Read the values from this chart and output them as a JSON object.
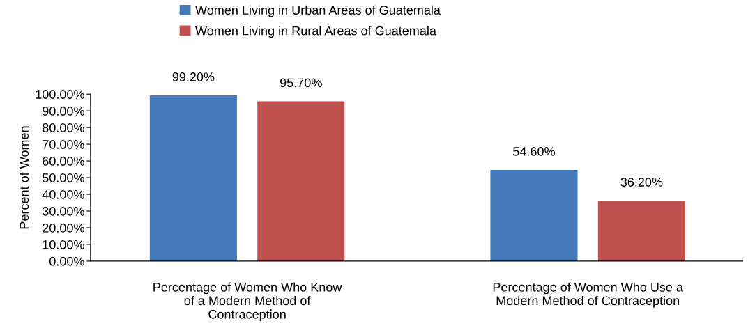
{
  "chart_data": {
    "type": "bar",
    "categories": [
      "Percentage of Women Who Know\nof a Modern Method of\nContraception",
      "Percentage of Women Who Use a\nModern Method of Contraception"
    ],
    "series": [
      {
        "name": "Women Living in Urban Areas of Guatemala",
        "color": "#4479bb",
        "values": [
          99.2,
          54.6
        ],
        "value_labels": [
          "99.20%",
          "54.60%"
        ]
      },
      {
        "name": "Women Living in Rural Areas of Guatemala",
        "color": "#bf504d",
        "values": [
          95.7,
          36.2
        ],
        "value_labels": [
          "95.70%",
          "36.20%"
        ]
      }
    ],
    "ylabel": "Percent of Women",
    "ylim": [
      0,
      100
    ],
    "yticks": [
      {
        "value": 0,
        "label": "0.00%"
      },
      {
        "value": 10,
        "label": "10.00%"
      },
      {
        "value": 20,
        "label": "20.00%"
      },
      {
        "value": 30,
        "label": "30.00%"
      },
      {
        "value": 40,
        "label": "40.00%"
      },
      {
        "value": 50,
        "label": "50.00%"
      },
      {
        "value": 60,
        "label": "60.00%"
      },
      {
        "value": 70,
        "label": "70.00%"
      },
      {
        "value": 80,
        "label": "80.00%"
      },
      {
        "value": 90,
        "label": "90.00%"
      },
      {
        "value": 100,
        "label": "100.00%"
      }
    ],
    "grid": false,
    "legend": "top"
  }
}
